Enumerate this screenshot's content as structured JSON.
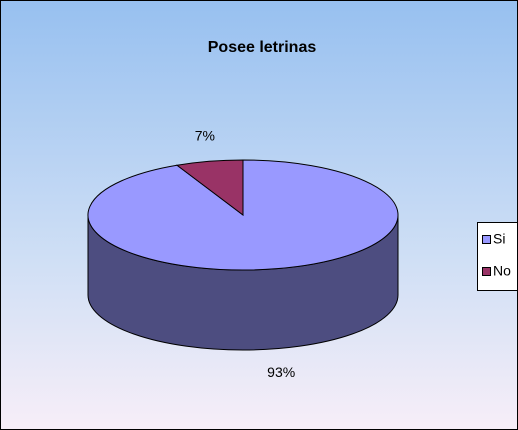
{
  "chart_data": {
    "type": "pie",
    "title": "Posee letrinas",
    "categories": [
      "Si",
      "No"
    ],
    "values": [
      93,
      7
    ],
    "value_labels": [
      "93%",
      "7%"
    ],
    "colors": [
      "#9999ff",
      "#993366"
    ],
    "legend": "right"
  }
}
